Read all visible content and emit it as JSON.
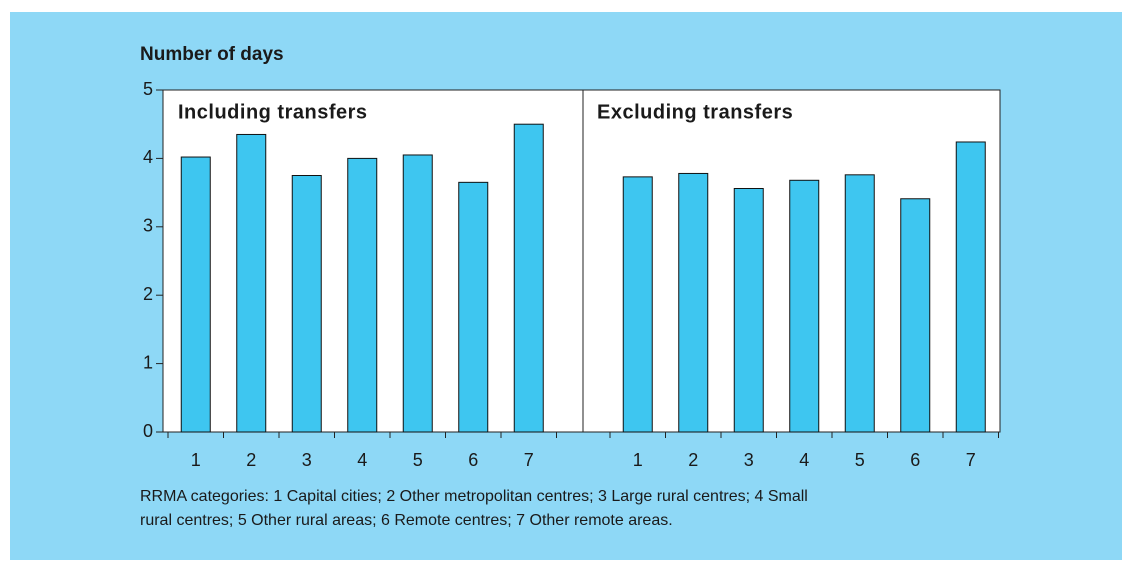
{
  "y_axis_label": "Number of days",
  "note_lines": [
    "RRMA categories: 1 Capital cities; 2 Other metropolitan centres; 3 Large rural centres; 4 Small",
    "rural centres; 5 Other rural areas; 6 Remote centres; 7 Other remote areas."
  ],
  "chart_data": [
    {
      "type": "bar",
      "title": "Including transfers",
      "categories": [
        "1",
        "2",
        "3",
        "4",
        "5",
        "6",
        "7"
      ],
      "values": [
        4.02,
        4.35,
        3.75,
        4.0,
        4.05,
        3.65,
        4.5
      ],
      "color": "#3ec6f0",
      "ylim": [
        0,
        5
      ],
      "yticks": [
        0,
        1,
        2,
        3,
        4,
        5
      ]
    },
    {
      "type": "bar",
      "title": "Excluding transfers",
      "categories": [
        "1",
        "2",
        "3",
        "4",
        "5",
        "6",
        "7"
      ],
      "values": [
        3.73,
        3.78,
        3.56,
        3.68,
        3.76,
        3.41,
        4.24
      ],
      "color": "#3ec6f0",
      "ylim": [
        0,
        5
      ]
    }
  ]
}
